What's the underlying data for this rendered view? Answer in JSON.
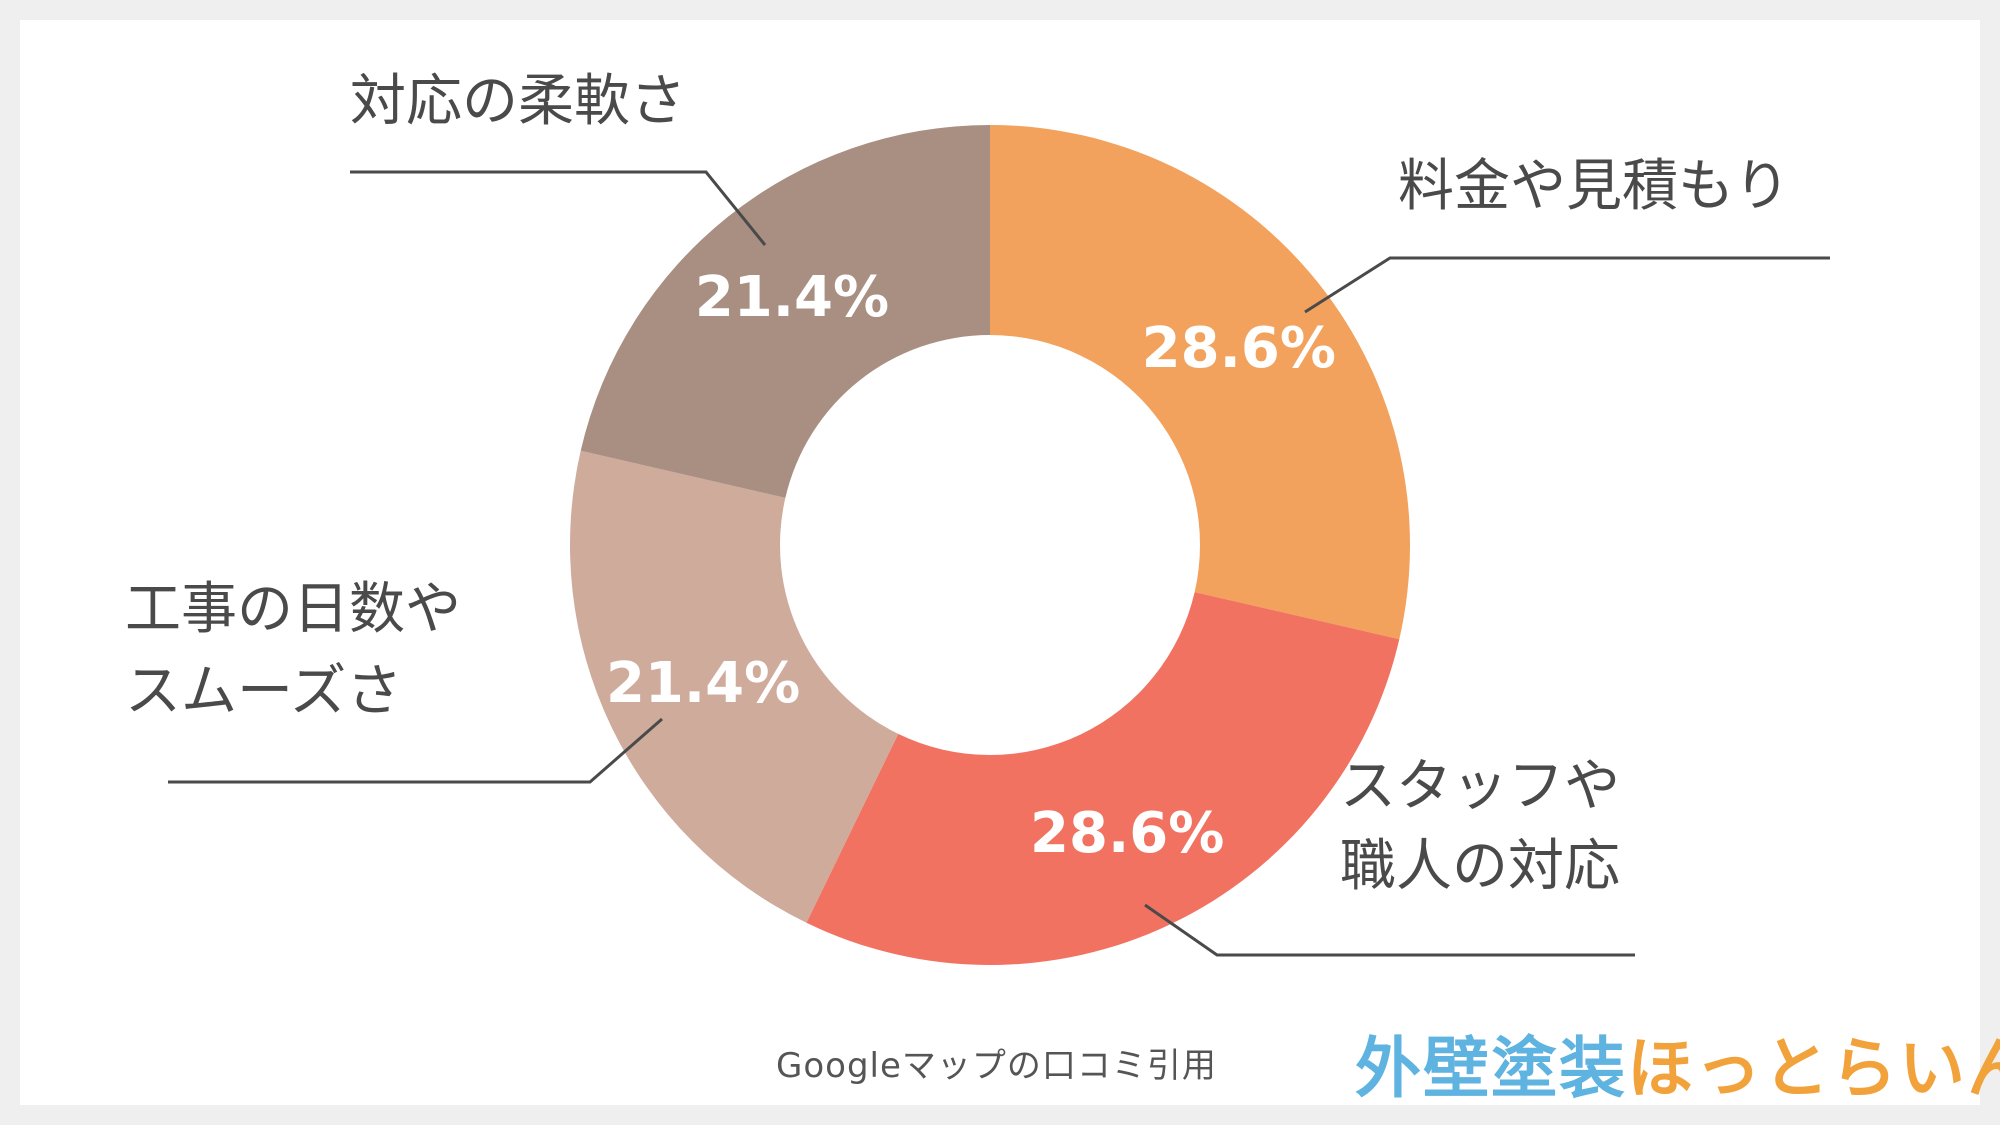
{
  "chart_data": {
    "type": "pie",
    "donut": true,
    "slices": [
      {
        "label_lines": [
          "料金や見積もり"
        ],
        "value": 28.6,
        "value_label": "28.6%",
        "color": "#f2a25c"
      },
      {
        "label_lines": [
          "スタッフや",
          "職人の対応"
        ],
        "value": 28.6,
        "value_label": "28.6%",
        "color": "#f27262"
      },
      {
        "label_lines": [
          "工事の日数や",
          "スムーズさ"
        ],
        "value": 21.4,
        "value_label": "21.4%",
        "color": "#cfab9c"
      },
      {
        "label_lines": [
          "対応の柔軟さ"
        ],
        "value": 21.4,
        "value_label": "21.4%",
        "color": "#a88f82"
      }
    ],
    "start": "12 o'clock",
    "direction": "clockwise"
  },
  "source_note": "Googleマップの口コミ引用",
  "logo": {
    "part1": "外壁塗装",
    "part2": "ほっとらいん"
  }
}
